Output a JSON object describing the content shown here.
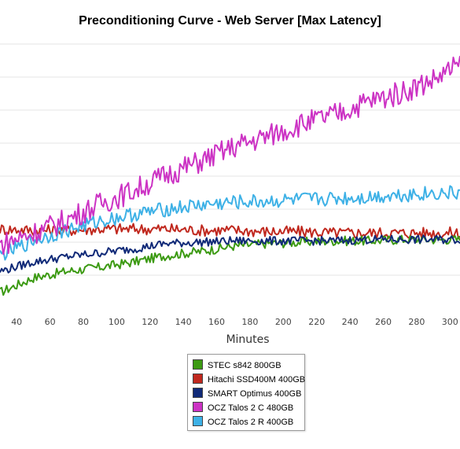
{
  "chart_data": {
    "type": "line",
    "title": "Preconditioning Curve - Web Server [Max Latency]",
    "xlabel": "Minutes",
    "ylabel": "",
    "xlim": [
      30,
      306
    ],
    "ylim": [
      0,
      10
    ],
    "x_ticks": [
      40,
      60,
      80,
      100,
      120,
      140,
      160,
      180,
      200,
      220,
      240,
      260,
      280,
      300
    ],
    "grid": true,
    "legend_position": "bottom",
    "series": [
      {
        "name": "STEC s842 800GB",
        "color": "#3c9a13",
        "x": [
          30,
          50,
          70,
          90,
          110,
          130,
          150,
          170,
          190,
          210,
          230,
          250,
          270,
          290,
          306
        ],
        "values": [
          0.6,
          1.15,
          1.4,
          1.55,
          1.75,
          2.0,
          2.15,
          2.35,
          2.45,
          2.5,
          2.55,
          2.55,
          2.6,
          2.6,
          2.6
        ]
      },
      {
        "name": "Hitachi SSD400M 400GB",
        "color": "#c0281e",
        "x": [
          30,
          50,
          70,
          90,
          110,
          130,
          150,
          170,
          190,
          210,
          230,
          250,
          270,
          290,
          306
        ],
        "values": [
          3.0,
          2.95,
          2.95,
          3.0,
          3.0,
          3.0,
          2.95,
          2.95,
          2.9,
          2.9,
          2.85,
          2.85,
          2.85,
          2.85,
          2.85
        ]
      },
      {
        "name": "SMART Optimus 400GB",
        "color": "#102a78",
        "x": [
          30,
          50,
          70,
          90,
          110,
          130,
          150,
          170,
          190,
          210,
          230,
          250,
          270,
          290,
          306
        ],
        "values": [
          1.4,
          1.75,
          1.95,
          2.1,
          2.25,
          2.45,
          2.5,
          2.55,
          2.55,
          2.55,
          2.55,
          2.6,
          2.6,
          2.6,
          2.6
        ]
      },
      {
        "name": "OCZ Talos 2 C 480GB",
        "color": "#cc33c4",
        "x": [
          30,
          50,
          70,
          90,
          110,
          130,
          150,
          170,
          190,
          210,
          230,
          250,
          270,
          290,
          306
        ],
        "values": [
          2.4,
          2.85,
          3.35,
          3.95,
          4.45,
          5.05,
          5.55,
          6.1,
          6.5,
          6.95,
          7.3,
          7.8,
          8.15,
          8.65,
          9.2
        ]
      },
      {
        "name": "OCZ Talos 2 R 400GB",
        "color": "#3eb1e6",
        "x": [
          30,
          50,
          70,
          90,
          110,
          130,
          150,
          170,
          190,
          210,
          230,
          250,
          270,
          290,
          306
        ],
        "values": [
          2.0,
          2.55,
          2.95,
          3.3,
          3.55,
          3.75,
          3.9,
          4.0,
          4.05,
          4.1,
          4.15,
          4.2,
          4.3,
          4.35,
          4.35
        ]
      }
    ]
  }
}
